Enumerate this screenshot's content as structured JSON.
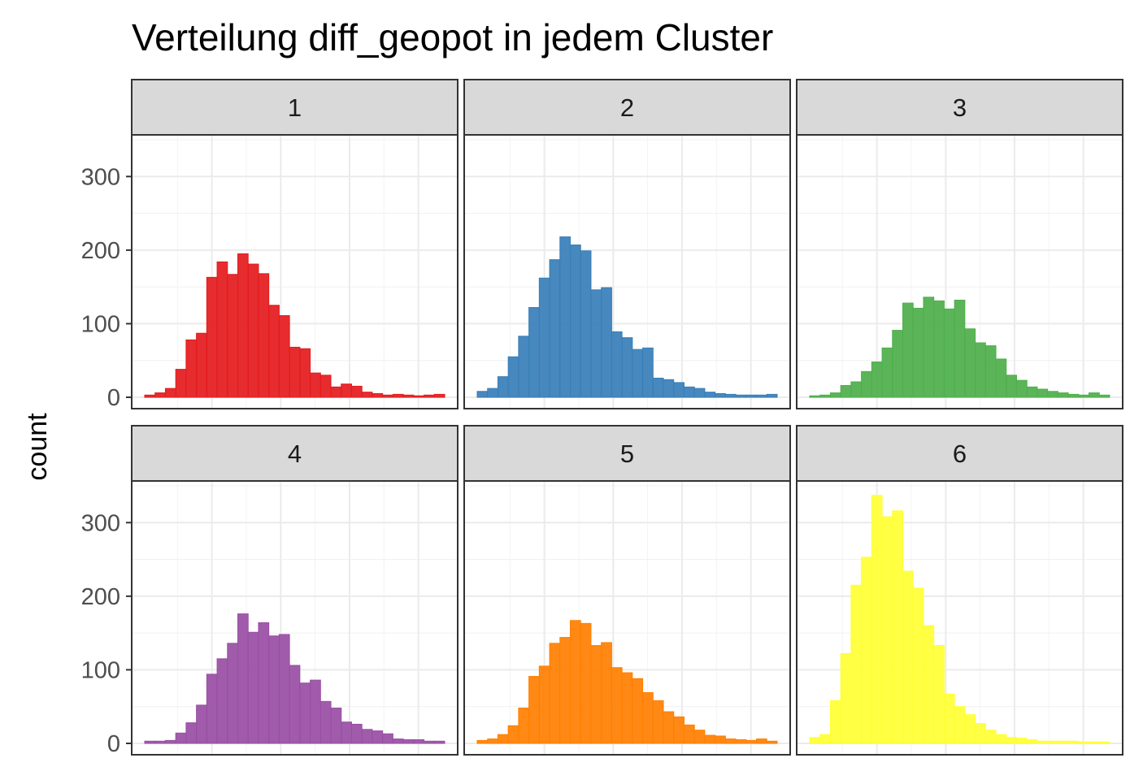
{
  "chart_data": {
    "type": "bar",
    "subtype": "faceted-histogram",
    "title": "Verteilung diff_geopot in jedem Cluster",
    "xlabel": "",
    "ylabel": "count",
    "ylim": [
      0,
      350
    ],
    "yticks": [
      0,
      100,
      200,
      300
    ],
    "grid": true,
    "legend": "none",
    "facet_layout": {
      "rows": 2,
      "cols": 3
    },
    "panels": [
      {
        "label": "1",
        "color": "#E41A1C",
        "values": [
          3,
          6,
          12,
          38,
          78,
          87,
          163,
          184,
          167,
          195,
          181,
          168,
          125,
          111,
          68,
          66,
          33,
          30,
          14,
          18,
          15,
          7,
          5,
          3,
          4,
          3,
          2,
          3,
          4
        ]
      },
      {
        "label": "2",
        "color": "#377EB8",
        "values": [
          8,
          12,
          28,
          55,
          83,
          122,
          162,
          187,
          218,
          207,
          199,
          146,
          149,
          89,
          81,
          65,
          67,
          26,
          24,
          20,
          14,
          12,
          7,
          5,
          4,
          3,
          3,
          3,
          4
        ]
      },
      {
        "label": "3",
        "color": "#4DAF4A",
        "values": [
          2,
          3,
          6,
          16,
          21,
          35,
          48,
          67,
          91,
          128,
          121,
          136,
          131,
          120,
          132,
          93,
          74,
          70,
          52,
          30,
          23,
          14,
          11,
          8,
          6,
          4,
          3,
          6,
          3
        ]
      },
      {
        "label": "4",
        "color": "#984EA3",
        "values": [
          3,
          3,
          4,
          14,
          28,
          52,
          94,
          115,
          136,
          176,
          151,
          164,
          146,
          148,
          106,
          82,
          86,
          57,
          48,
          29,
          26,
          19,
          17,
          13,
          6,
          5,
          5,
          3,
          3
        ]
      },
      {
        "label": "5",
        "color": "#FF7F00",
        "values": [
          4,
          6,
          12,
          24,
          48,
          91,
          105,
          136,
          144,
          167,
          163,
          133,
          137,
          103,
          96,
          88,
          69,
          58,
          43,
          36,
          25,
          18,
          11,
          10,
          6,
          5,
          4,
          6,
          3
        ]
      },
      {
        "label": "6",
        "color": "#FFFF33",
        "values": [
          8,
          12,
          58,
          122,
          215,
          253,
          337,
          308,
          316,
          234,
          211,
          160,
          133,
          67,
          50,
          39,
          27,
          18,
          12,
          8,
          7,
          5,
          3,
          3,
          3,
          3,
          2,
          2,
          2
        ]
      }
    ]
  }
}
